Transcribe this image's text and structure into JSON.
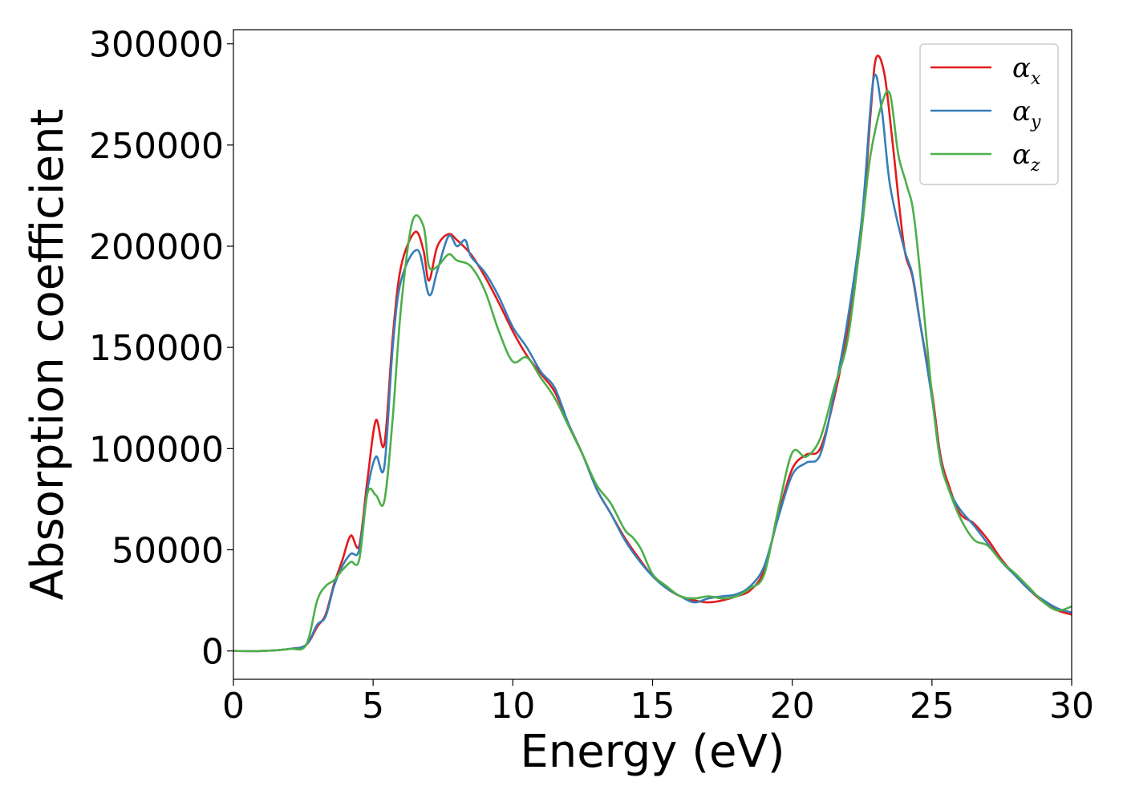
{
  "chart_data": {
    "type": "line",
    "title": "",
    "xlabel": "Energy (eV)",
    "ylabel": "Absorption coefficient",
    "xlim": [
      0,
      30
    ],
    "ylim": [
      -14000,
      307000
    ],
    "xticks": [
      0,
      5,
      10,
      15,
      20,
      25,
      30
    ],
    "yticks": [
      0,
      50000,
      100000,
      150000,
      200000,
      250000,
      300000
    ],
    "grid": false,
    "legend_position": "top-right",
    "series": [
      {
        "name": "αx",
        "symbol": "α",
        "sub": "x",
        "color": "#e41a1c",
        "x": [
          0,
          1,
          2,
          2.6,
          3,
          3.3,
          3.6,
          3.9,
          4.2,
          4.5,
          4.8,
          5.1,
          5.4,
          5.7,
          6.0,
          6.5,
          6.8,
          7.0,
          7.3,
          7.7,
          8.0,
          8.5,
          9.0,
          9.5,
          10.0,
          10.5,
          11.0,
          11.5,
          12.0,
          12.5,
          13.0,
          13.5,
          14.0,
          14.5,
          15.0,
          15.5,
          16.0,
          16.5,
          17.0,
          17.5,
          18.0,
          18.5,
          19.0,
          19.5,
          20.0,
          20.5,
          21.0,
          21.5,
          22.0,
          22.5,
          22.8,
          23.0,
          23.3,
          23.6,
          24.0,
          24.3,
          24.6,
          25.0,
          25.3,
          25.6,
          26.0,
          26.5,
          27.0,
          27.5,
          28.0,
          28.5,
          29.0,
          29.5,
          30
        ],
        "values": [
          0,
          0,
          1000,
          3000,
          12000,
          18000,
          33000,
          45000,
          57000,
          52000,
          85000,
          114000,
          102000,
          155000,
          190000,
          207000,
          198000,
          183000,
          200000,
          206000,
          203000,
          196000,
          185000,
          172000,
          158000,
          146000,
          137000,
          128000,
          112000,
          97000,
          80000,
          68000,
          56000,
          46000,
          37000,
          31000,
          27000,
          25000,
          24000,
          25000,
          27000,
          30000,
          40000,
          67000,
          90000,
          97000,
          100000,
          125000,
          160000,
          210000,
          265000,
          293000,
          285000,
          250000,
          200000,
          185000,
          160000,
          128000,
          97000,
          82000,
          68000,
          63000,
          55000,
          45000,
          37000,
          30000,
          24000,
          20000,
          18000
        ]
      },
      {
        "name": "αy",
        "symbol": "α",
        "sub": "y",
        "color": "#377eb8",
        "x": [
          0,
          1,
          2,
          2.6,
          3,
          3.3,
          3.6,
          3.9,
          4.2,
          4.5,
          4.8,
          5.1,
          5.4,
          5.7,
          6.0,
          6.6,
          7.0,
          7.3,
          7.7,
          8.0,
          8.3,
          8.5,
          9.0,
          9.5,
          10.0,
          10.5,
          11.0,
          11.5,
          12.0,
          12.5,
          13.0,
          13.5,
          14.0,
          14.5,
          15.0,
          15.5,
          16.0,
          16.5,
          17.0,
          17.5,
          18.0,
          18.5,
          19.0,
          19.5,
          20.0,
          20.5,
          21.0,
          21.5,
          22.0,
          22.5,
          22.9,
          23.2,
          23.5,
          24.0,
          24.3,
          24.6,
          25.0,
          25.3,
          25.6,
          26.0,
          26.5,
          27.0,
          27.5,
          28.0,
          28.5,
          29.0,
          29.5,
          30
        ],
        "values": [
          0,
          0,
          1000,
          3000,
          13000,
          17000,
          32000,
          42000,
          48000,
          50000,
          80000,
          96000,
          91000,
          150000,
          183000,
          198000,
          176000,
          188000,
          205000,
          200000,
          203000,
          195000,
          187000,
          175000,
          160000,
          150000,
          138000,
          130000,
          112000,
          97000,
          80000,
          68000,
          55000,
          45000,
          37000,
          31000,
          27000,
          24000,
          26000,
          27000,
          28000,
          32000,
          42000,
          66000,
          87000,
          93000,
          97000,
          127000,
          165000,
          215000,
          282000,
          268000,
          230000,
          199000,
          186000,
          160000,
          125000,
          95000,
          80000,
          70000,
          62000,
          53000,
          44000,
          37000,
          30000,
          25000,
          21000,
          19000
        ]
      },
      {
        "name": "αz",
        "symbol": "α",
        "sub": "z",
        "color": "#4daf4a",
        "x": [
          0,
          1,
          2,
          2.6,
          3,
          3.3,
          3.6,
          3.9,
          4.2,
          4.5,
          4.8,
          5.1,
          5.4,
          5.7,
          6.0,
          6.4,
          6.8,
          7.0,
          7.3,
          7.7,
          8.0,
          8.5,
          9.0,
          9.5,
          10.0,
          10.5,
          11.0,
          11.5,
          12.0,
          12.5,
          13.0,
          13.5,
          14.0,
          14.3,
          14.6,
          15.0,
          15.5,
          16.0,
          16.5,
          17.0,
          17.5,
          18.0,
          18.5,
          19.0,
          19.5,
          20.0,
          20.5,
          21.0,
          21.5,
          22.0,
          22.5,
          22.8,
          23.2,
          23.5,
          23.8,
          24.1,
          24.4,
          25.0,
          25.3,
          25.6,
          26.0,
          26.5,
          27.0,
          27.5,
          28.0,
          28.5,
          29.0,
          29.5,
          30
        ],
        "values": [
          0,
          0,
          1000,
          3000,
          25000,
          32000,
          35000,
          40000,
          44000,
          45000,
          78000,
          77000,
          74000,
          115000,
          170000,
          212000,
          210000,
          190000,
          190000,
          196000,
          193000,
          190000,
          178000,
          158000,
          143000,
          145000,
          135000,
          125000,
          111000,
          97000,
          82000,
          73000,
          60000,
          56000,
          50000,
          38000,
          32000,
          27000,
          26000,
          27000,
          26000,
          27000,
          31000,
          38000,
          70000,
          98000,
          96000,
          105000,
          130000,
          155000,
          210000,
          245000,
          270000,
          275000,
          245000,
          230000,
          210000,
          127000,
          94000,
          80000,
          66000,
          55000,
          52000,
          44000,
          38000,
          31000,
          24000,
          20000,
          22000
        ]
      }
    ]
  }
}
